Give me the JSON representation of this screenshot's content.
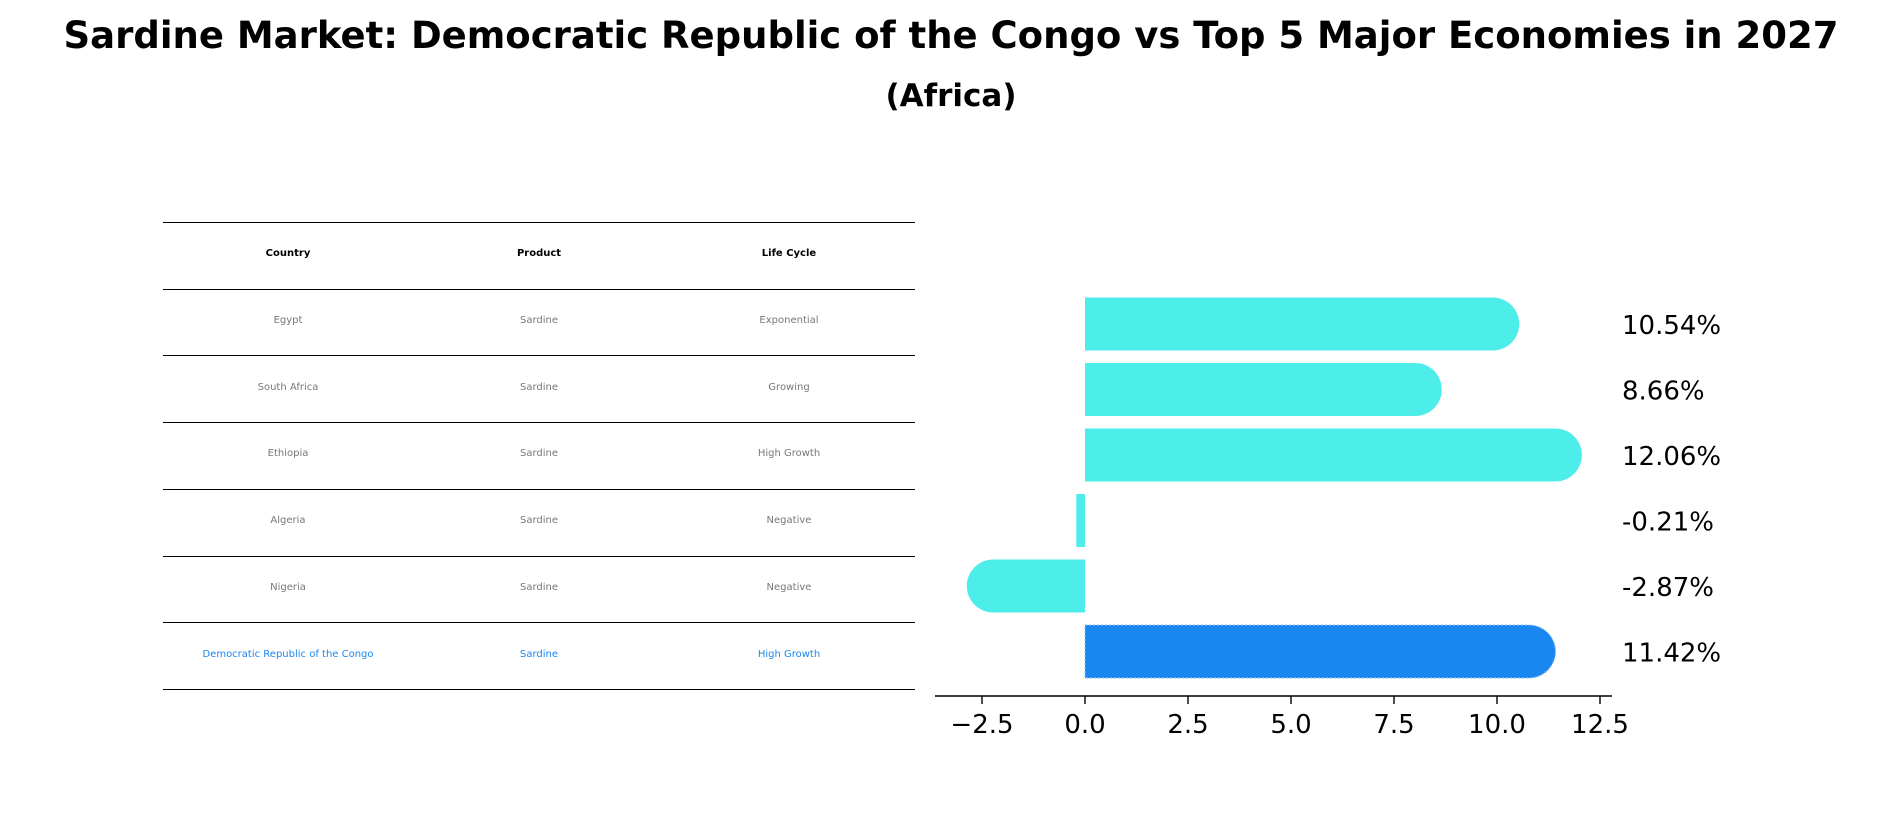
{
  "title": "Sardine Market: Democratic Republic of the Congo vs Top 5 Major Economies in 2027",
  "subtitle": "(Africa)",
  "table": {
    "headers": [
      "Country",
      "Product",
      "Life Cycle"
    ],
    "rows": [
      {
        "country": "Egypt",
        "product": "Sardine",
        "life_cycle": "Exponential"
      },
      {
        "country": "South Africa",
        "product": "Sardine",
        "life_cycle": "Growing"
      },
      {
        "country": "Ethiopia",
        "product": "Sardine",
        "life_cycle": "High Growth"
      },
      {
        "country": "Algeria",
        "product": "Sardine",
        "life_cycle": "Negative"
      },
      {
        "country": "Nigeria",
        "product": "Sardine",
        "life_cycle": "Negative"
      },
      {
        "country": "Democratic Republic of the Congo",
        "product": "Sardine",
        "life_cycle": "High Growth"
      }
    ]
  },
  "chart_data": {
    "type": "bar",
    "orientation": "horizontal",
    "categories": [
      "Egypt",
      "South Africa",
      "Ethiopia",
      "Algeria",
      "Nigeria",
      "Democratic Republic of the Congo"
    ],
    "values": [
      10.54,
      8.66,
      12.06,
      -0.21,
      -2.87,
      11.42
    ],
    "value_labels": [
      "10.54%",
      "8.66%",
      "12.06%",
      "-0.21%",
      "-2.87%",
      "11.42%"
    ],
    "highlight_index": 5,
    "xlim": [
      -3.7,
      12.8
    ],
    "xticks": [
      -2.5,
      0.0,
      2.5,
      5.0,
      7.5,
      10.0,
      12.5
    ],
    "xtick_labels": [
      "−2.5",
      "0.0",
      "2.5",
      "5.0",
      "7.5",
      "10.0",
      "12.5"
    ],
    "colors": {
      "bar": "#4DEDEA",
      "highlight": "#1A86F0",
      "highlight_text": "#1A86F0"
    }
  }
}
